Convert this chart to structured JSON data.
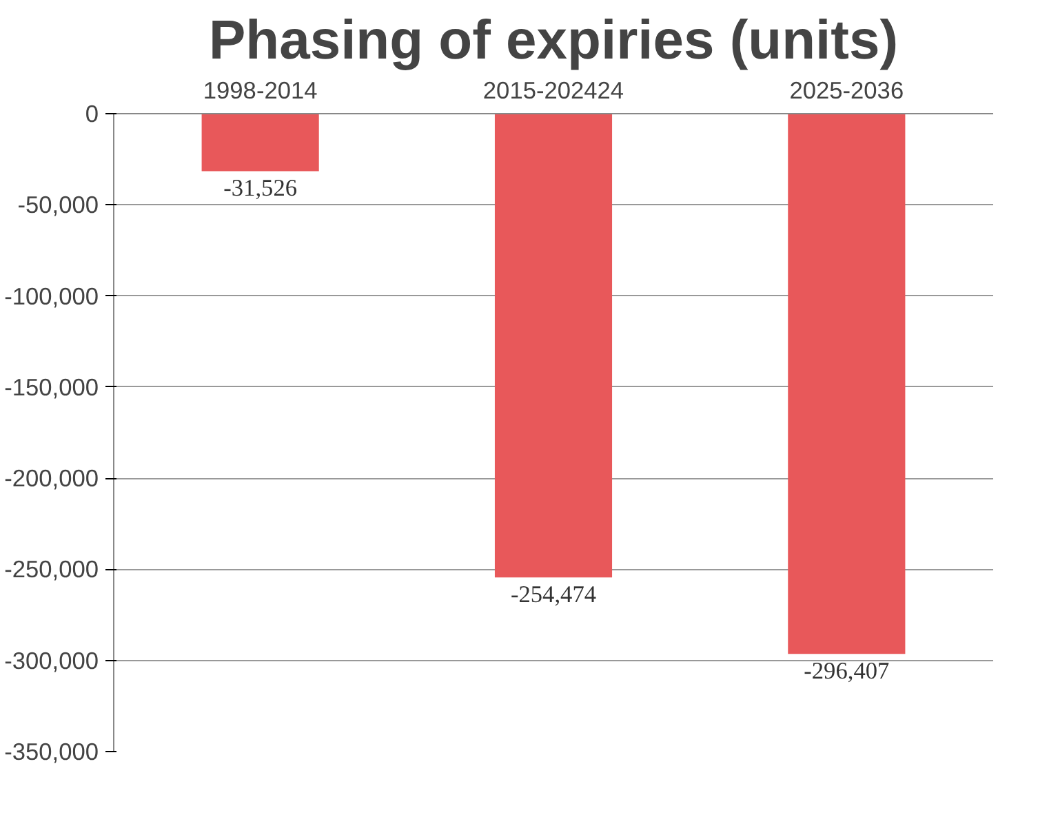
{
  "chart_data": {
    "type": "bar",
    "title": "Phasing of expiries (units)",
    "categories": [
      "1998-2014",
      "2015-202424",
      "2025-2036"
    ],
    "values": [
      -31526,
      -254474,
      -296407
    ],
    "value_labels": [
      "-31,526",
      "-254,474",
      "-296,407"
    ],
    "color": "#e8585a",
    "ylim": [
      -350000,
      0
    ],
    "yticks": [
      0,
      {
        "value": -50000,
        "label": "-50,000"
      },
      {
        "value": -100000,
        "label": "-100,000"
      },
      {
        "value": -150000,
        "label": "-150,000"
      },
      {
        "value": -200000,
        "label": "-200,000"
      },
      {
        "value": -250000,
        "label": "-250,000"
      },
      {
        "value": -300000,
        "label": "-300,000"
      },
      {
        "value": -350000,
        "label": "-350,000"
      }
    ],
    "grid": "y"
  }
}
